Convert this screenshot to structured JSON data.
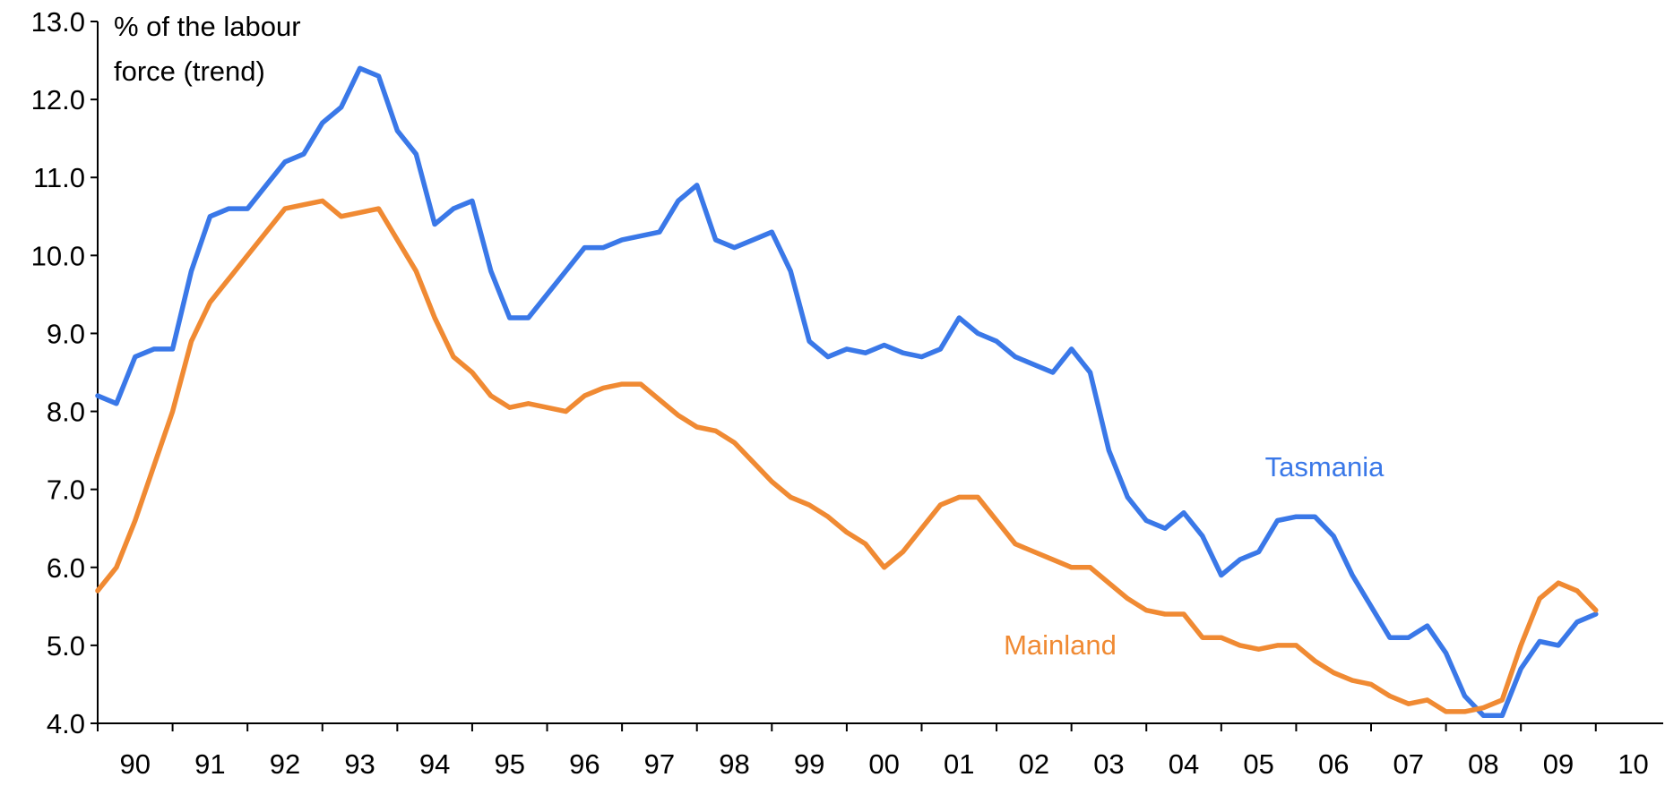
{
  "chart_data": {
    "type": "line",
    "y_label": [
      "% of the labour",
      "force (trend)"
    ],
    "x": [
      1990,
      1990.25,
      1990.5,
      1990.75,
      1991,
      1991.25,
      1991.5,
      1991.75,
      1992,
      1992.25,
      1992.5,
      1992.75,
      1993,
      1993.25,
      1993.5,
      1993.75,
      1994,
      1994.25,
      1994.5,
      1994.75,
      1995,
      1995.25,
      1995.5,
      1995.75,
      1996,
      1996.25,
      1996.5,
      1996.75,
      1997,
      1997.25,
      1997.5,
      1997.75,
      1998,
      1998.25,
      1998.5,
      1998.75,
      1999,
      1999.25,
      1999.5,
      1999.75,
      2000,
      2000.25,
      2000.5,
      2000.75,
      2001,
      2001.25,
      2001.5,
      2001.75,
      2002,
      2002.25,
      2002.5,
      2002.75,
      2003,
      2003.25,
      2003.5,
      2003.75,
      2004,
      2004.25,
      2004.5,
      2004.75,
      2005,
      2005.25,
      2005.5,
      2005.75,
      2006,
      2006.25,
      2006.5,
      2006.75,
      2007,
      2007.25,
      2007.5,
      2007.75,
      2008,
      2008.25,
      2008.5,
      2008.75,
      2009,
      2009.25,
      2009.5,
      2009.75,
      2010
    ],
    "series": [
      {
        "name": "Tasmania",
        "color": "#3a78e8",
        "values": [
          8.2,
          8.1,
          8.7,
          8.8,
          8.8,
          9.8,
          10.5,
          10.6,
          10.6,
          10.9,
          11.2,
          11.3,
          11.7,
          11.9,
          12.4,
          12.3,
          11.6,
          11.3,
          10.4,
          10.6,
          10.7,
          9.8,
          9.2,
          9.2,
          9.5,
          9.8,
          10.1,
          10.1,
          10.2,
          10.25,
          10.3,
          10.7,
          10.9,
          10.2,
          10.1,
          10.2,
          10.3,
          9.8,
          8.9,
          8.7,
          8.8,
          8.75,
          8.85,
          8.75,
          8.7,
          8.8,
          9.2,
          9.0,
          8.9,
          8.7,
          8.6,
          8.5,
          8.8,
          8.5,
          7.5,
          6.9,
          6.6,
          6.5,
          6.7,
          6.4,
          5.9,
          6.1,
          6.2,
          6.6,
          6.65,
          6.65,
          6.4,
          5.9,
          5.5,
          5.1,
          5.1,
          5.25,
          4.9,
          4.35,
          4.1,
          4.1,
          4.7,
          5.05,
          5.0,
          5.3,
          5.4
        ]
      },
      {
        "name": "Mainland",
        "color": "#f08a33",
        "values": [
          5.7,
          6.0,
          6.6,
          7.3,
          8.0,
          8.9,
          9.4,
          9.7,
          10.0,
          10.3,
          10.6,
          10.65,
          10.7,
          10.5,
          10.55,
          10.6,
          10.2,
          9.8,
          9.2,
          8.7,
          8.5,
          8.2,
          8.05,
          8.1,
          8.05,
          8.0,
          8.2,
          8.3,
          8.35,
          8.35,
          8.15,
          7.95,
          7.8,
          7.75,
          7.6,
          7.35,
          7.1,
          6.9,
          6.8,
          6.65,
          6.45,
          6.3,
          6.0,
          6.2,
          6.5,
          6.8,
          6.9,
          6.9,
          6.6,
          6.3,
          6.2,
          6.1,
          6.0,
          6.0,
          5.8,
          5.6,
          5.45,
          5.4,
          5.4,
          5.1,
          5.1,
          5.0,
          4.95,
          5.0,
          5.0,
          4.8,
          4.65,
          4.55,
          4.5,
          4.35,
          4.25,
          4.3,
          4.15,
          4.15,
          4.2,
          4.3,
          5.0,
          5.6,
          5.8,
          5.7,
          5.45
        ]
      }
    ],
    "xlim": [
      1990,
      2010.9
    ],
    "xticks": [
      {
        "value": 1990.5,
        "label": "90"
      },
      {
        "value": 1991.5,
        "label": "91"
      },
      {
        "value": 1992.5,
        "label": "92"
      },
      {
        "value": 1993.5,
        "label": "93"
      },
      {
        "value": 1994.5,
        "label": "94"
      },
      {
        "value": 1995.5,
        "label": "95"
      },
      {
        "value": 1996.5,
        "label": "96"
      },
      {
        "value": 1997.5,
        "label": "97"
      },
      {
        "value": 1998.5,
        "label": "98"
      },
      {
        "value": 1999.5,
        "label": "99"
      },
      {
        "value": 2000.5,
        "label": "00"
      },
      {
        "value": 2001.5,
        "label": "01"
      },
      {
        "value": 2002.5,
        "label": "02"
      },
      {
        "value": 2003.5,
        "label": "03"
      },
      {
        "value": 2004.5,
        "label": "04"
      },
      {
        "value": 2005.5,
        "label": "05"
      },
      {
        "value": 2006.5,
        "label": "06"
      },
      {
        "value": 2007.5,
        "label": "07"
      },
      {
        "value": 2008.5,
        "label": "08"
      },
      {
        "value": 2009.5,
        "label": "09"
      },
      {
        "value": 2010.5,
        "label": "10"
      }
    ],
    "ylim": [
      4,
      13
    ],
    "yticks": [
      {
        "value": 4,
        "label": "4.0"
      },
      {
        "value": 5,
        "label": "5.0"
      },
      {
        "value": 6,
        "label": "6.0"
      },
      {
        "value": 7,
        "label": "7.0"
      },
      {
        "value": 8,
        "label": "8.0"
      },
      {
        "value": 9,
        "label": "9.0"
      },
      {
        "value": 10,
        "label": "10.0"
      },
      {
        "value": 11,
        "label": "11.0"
      },
      {
        "value": 12,
        "label": "12.0"
      },
      {
        "value": 13,
        "label": "13.0"
      }
    ],
    "grid": false
  }
}
